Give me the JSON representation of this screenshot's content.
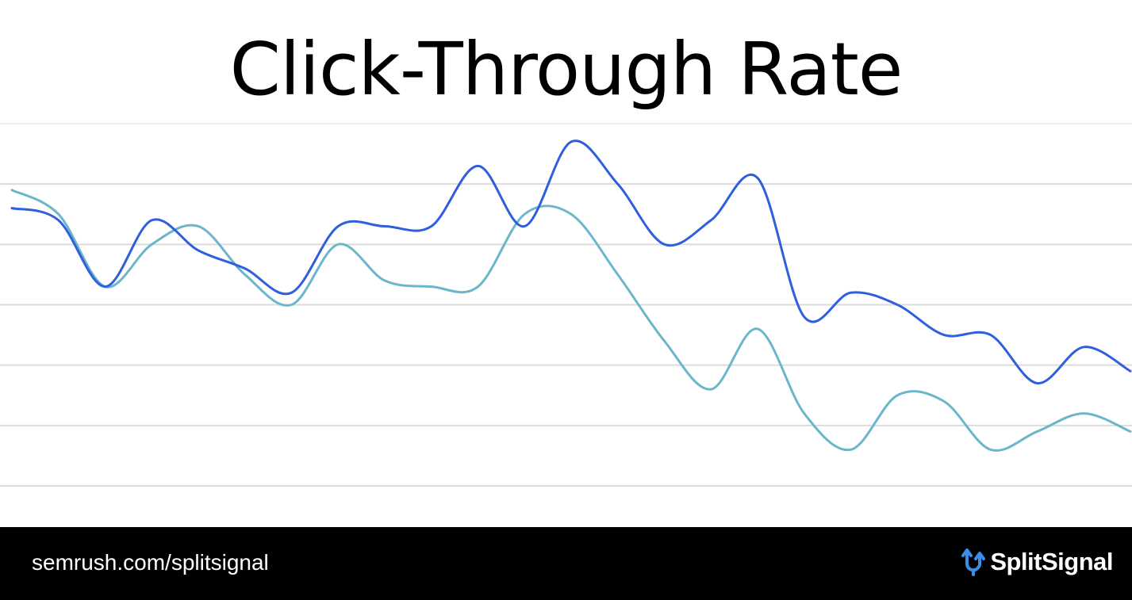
{
  "title": "Click-Through Rate",
  "footer": {
    "url": "semrush.com/splitsignal",
    "brand": "SplitSignal",
    "brand_icon": "split-arrows-icon"
  },
  "colors": {
    "grid": "#dcdcdc",
    "series_dark": "#2e5fdc",
    "series_light": "#6cb6cc",
    "footer_bg": "#000000",
    "brand_icon": "#3b8ee8"
  },
  "chart_data": {
    "type": "line",
    "title": "Click-Through Rate",
    "xlabel": "",
    "ylabel": "",
    "grid": true,
    "legend": "none",
    "ylim": [
      0,
      6
    ],
    "xlim": [
      0,
      24
    ],
    "x": [
      0,
      1,
      2,
      3,
      4,
      5,
      6,
      7,
      8,
      9,
      10,
      11,
      12,
      13,
      14,
      15,
      16,
      17,
      18,
      19,
      20,
      21,
      22,
      23,
      24
    ],
    "series": [
      {
        "color": "#2e5fdc",
        "values": [
          4.6,
          4.4,
          3.3,
          4.4,
          3.9,
          3.6,
          3.2,
          4.3,
          4.3,
          4.3,
          5.3,
          4.3,
          5.7,
          5.0,
          4.0,
          4.4,
          5.1,
          2.8,
          3.2,
          3.0,
          2.5,
          2.5,
          1.7,
          2.3,
          1.9
        ]
      },
      {
        "color": "#6cb6cc",
        "values": [
          4.9,
          4.5,
          3.3,
          4.0,
          4.3,
          3.5,
          3.0,
          4.0,
          3.4,
          3.3,
          3.3,
          4.5,
          4.5,
          3.5,
          2.4,
          1.6,
          2.6,
          1.2,
          0.6,
          1.5,
          1.4,
          0.6,
          0.9,
          1.2,
          0.9
        ]
      }
    ]
  }
}
